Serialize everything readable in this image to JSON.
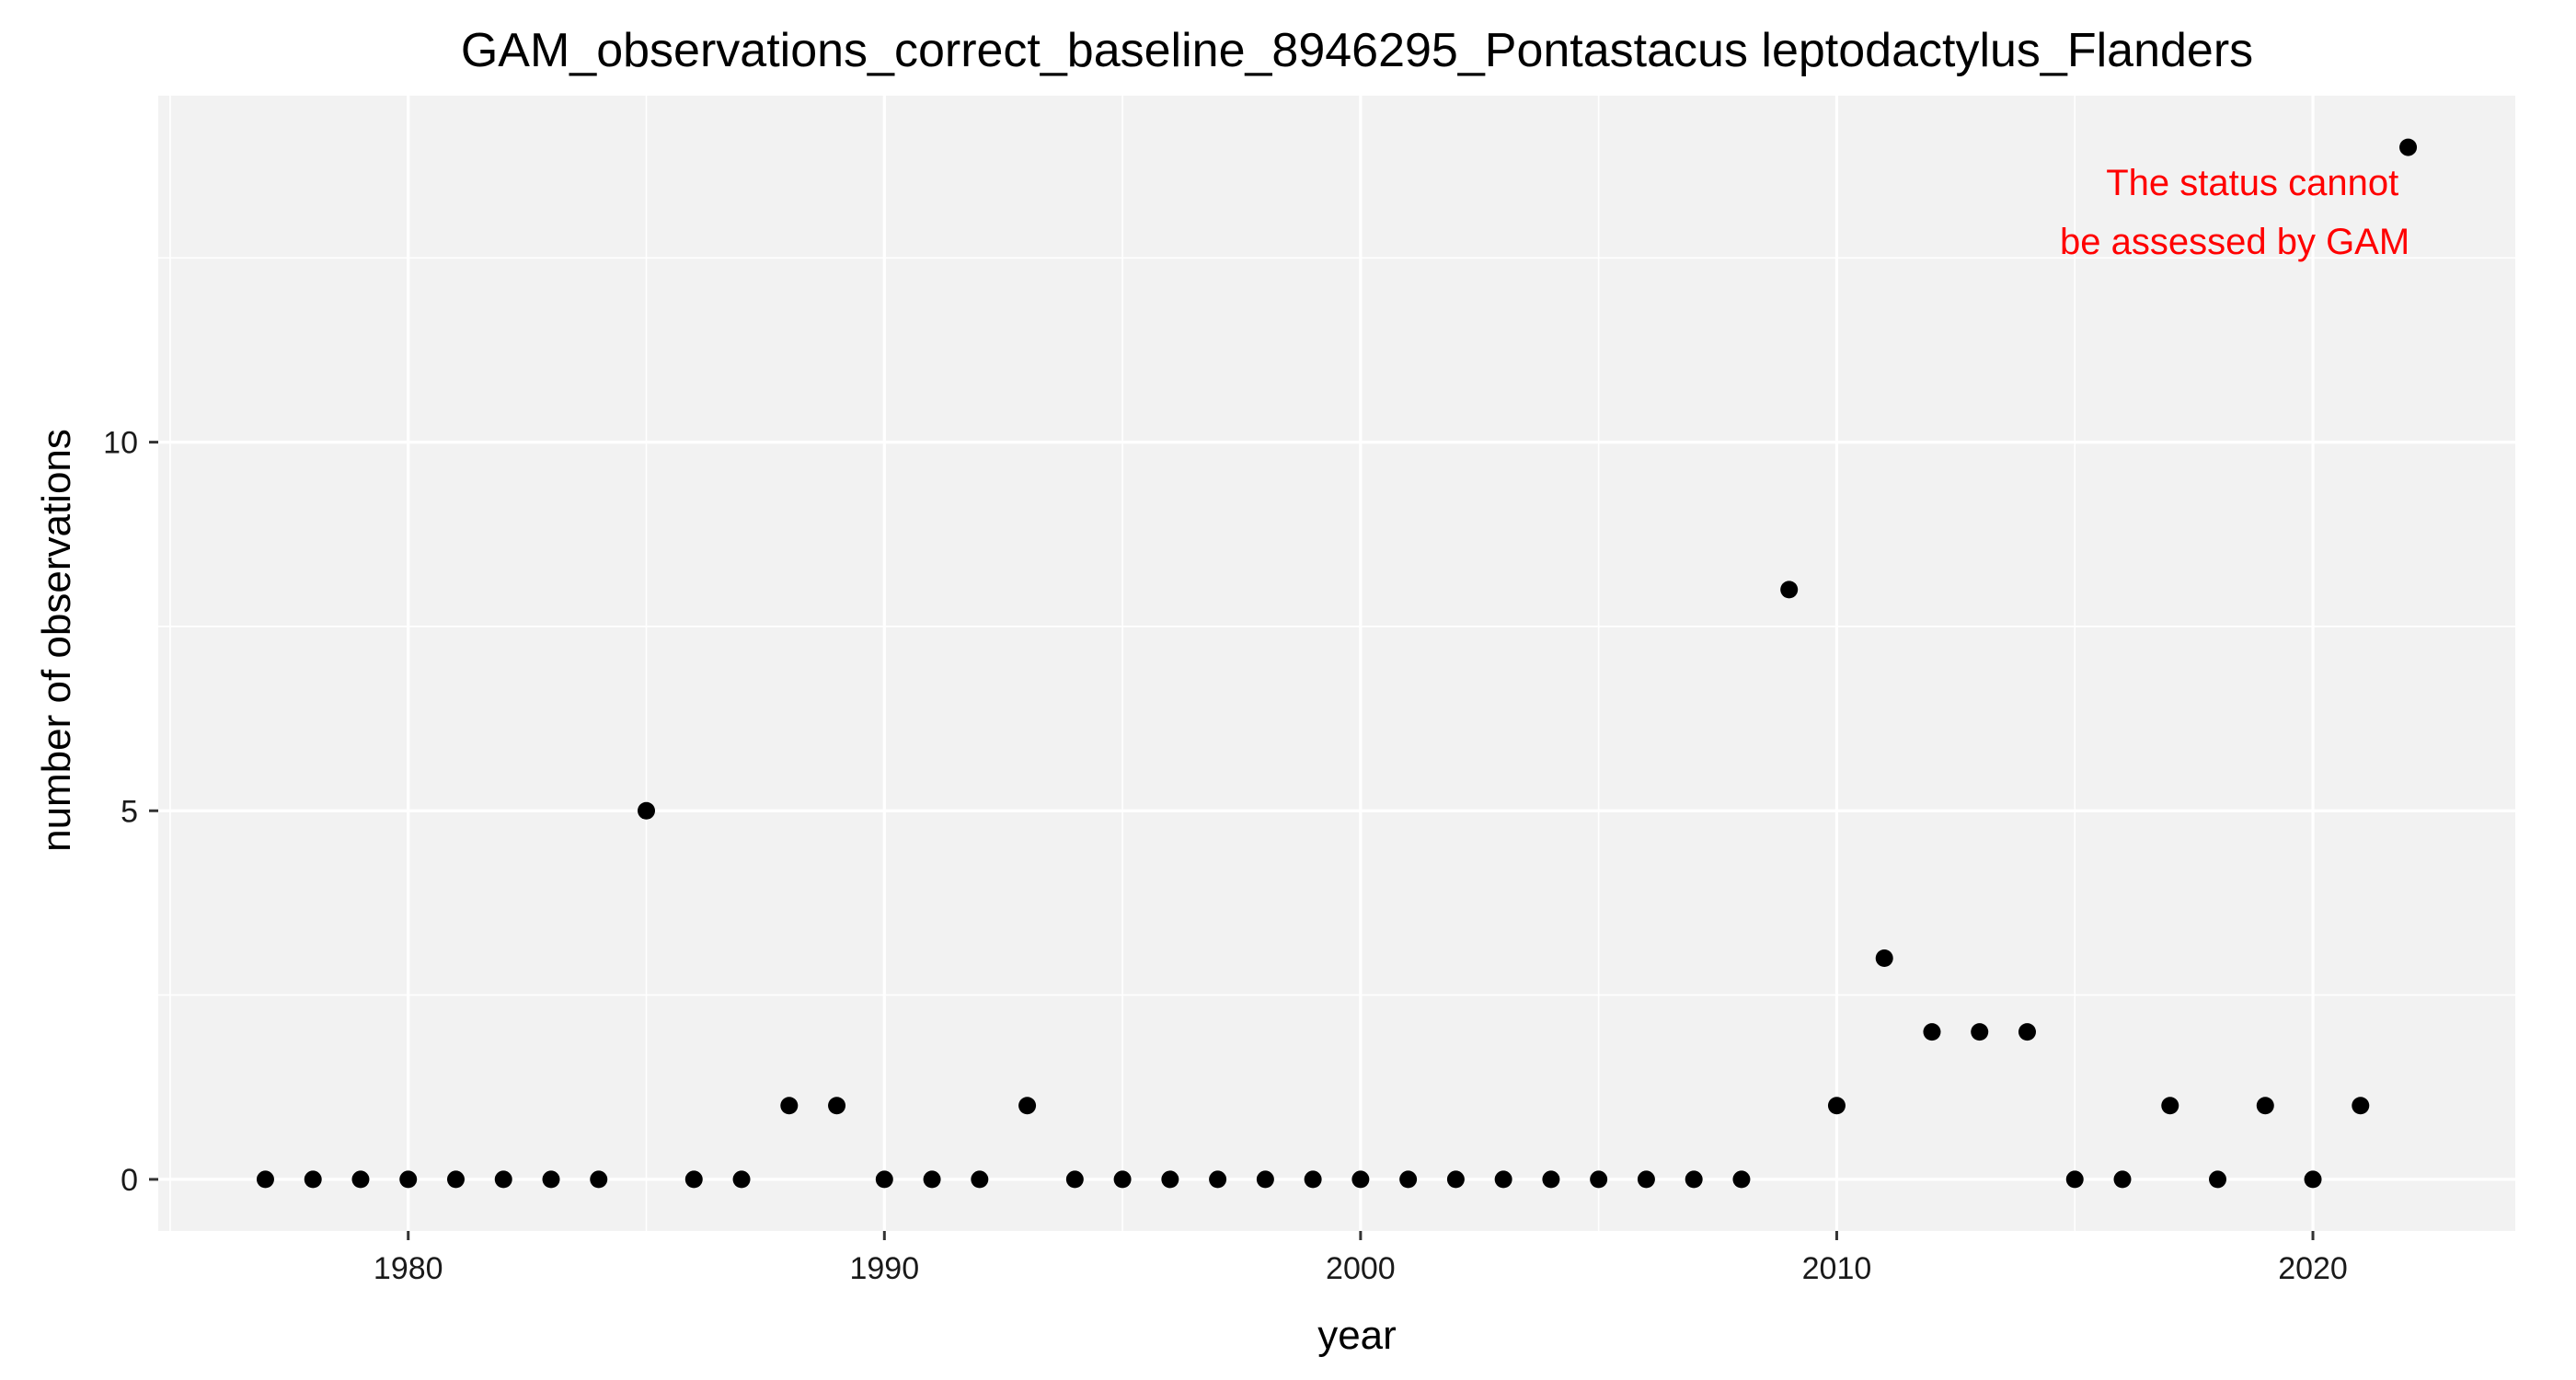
{
  "chart_data": {
    "type": "scatter",
    "title": "GAM_observations_correct_baseline_8946295_Pontastacus leptodactylus_Flanders",
    "xlabel": "year",
    "ylabel": "number of observations",
    "xlim": [
      1974.75,
      2024.25
    ],
    "ylim": [
      -0.7,
      14.7
    ],
    "x_ticks": [
      1980,
      1990,
      2000,
      2010,
      2020
    ],
    "y_ticks": [
      0,
      5,
      10
    ],
    "grid": true,
    "panel_color": "#f2f2f2",
    "grid_color": "#ffffff",
    "point_color": "#000000",
    "annotation": {
      "lines": [
        "The status cannot",
        "be assessed by GAM"
      ],
      "color": "#ff0000"
    },
    "points": [
      {
        "x": 1977,
        "y": 0
      },
      {
        "x": 1978,
        "y": 0
      },
      {
        "x": 1979,
        "y": 0
      },
      {
        "x": 1980,
        "y": 0
      },
      {
        "x": 1981,
        "y": 0
      },
      {
        "x": 1982,
        "y": 0
      },
      {
        "x": 1983,
        "y": 0
      },
      {
        "x": 1984,
        "y": 0
      },
      {
        "x": 1985,
        "y": 5
      },
      {
        "x": 1986,
        "y": 0
      },
      {
        "x": 1987,
        "y": 0
      },
      {
        "x": 1988,
        "y": 1
      },
      {
        "x": 1989,
        "y": 1
      },
      {
        "x": 1990,
        "y": 0
      },
      {
        "x": 1991,
        "y": 0
      },
      {
        "x": 1992,
        "y": 0
      },
      {
        "x": 1993,
        "y": 1
      },
      {
        "x": 1994,
        "y": 0
      },
      {
        "x": 1995,
        "y": 0
      },
      {
        "x": 1996,
        "y": 0
      },
      {
        "x": 1997,
        "y": 0
      },
      {
        "x": 1998,
        "y": 0
      },
      {
        "x": 1999,
        "y": 0
      },
      {
        "x": 2000,
        "y": 0
      },
      {
        "x": 2001,
        "y": 0
      },
      {
        "x": 2002,
        "y": 0
      },
      {
        "x": 2003,
        "y": 0
      },
      {
        "x": 2004,
        "y": 0
      },
      {
        "x": 2005,
        "y": 0
      },
      {
        "x": 2006,
        "y": 0
      },
      {
        "x": 2007,
        "y": 0
      },
      {
        "x": 2008,
        "y": 0
      },
      {
        "x": 2009,
        "y": 8
      },
      {
        "x": 2010,
        "y": 1
      },
      {
        "x": 2011,
        "y": 3
      },
      {
        "x": 2012,
        "y": 2
      },
      {
        "x": 2013,
        "y": 2
      },
      {
        "x": 2014,
        "y": 2
      },
      {
        "x": 2015,
        "y": 0
      },
      {
        "x": 2016,
        "y": 0
      },
      {
        "x": 2017,
        "y": 1
      },
      {
        "x": 2018,
        "y": 0
      },
      {
        "x": 2019,
        "y": 1
      },
      {
        "x": 2020,
        "y": 0
      },
      {
        "x": 2021,
        "y": 1
      },
      {
        "x": 2022,
        "y": 14
      }
    ]
  }
}
